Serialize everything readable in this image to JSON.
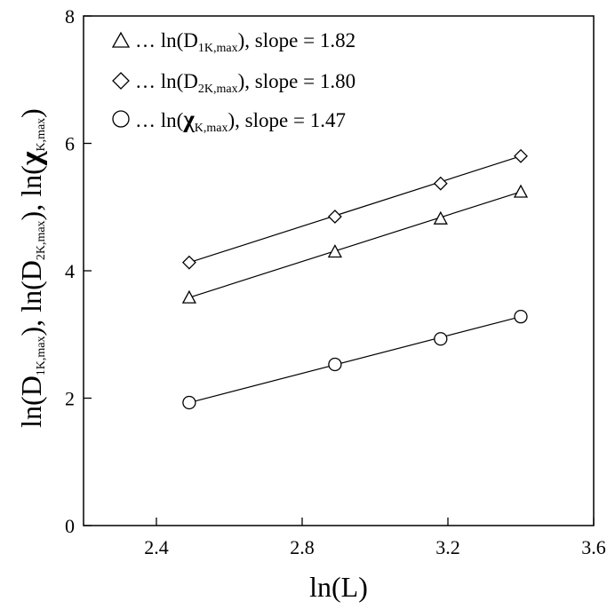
{
  "chart_data": {
    "type": "scatter",
    "x": [
      2.49,
      2.89,
      3.18,
      3.4
    ],
    "xlim": [
      2.2,
      3.6
    ],
    "ylim": [
      0,
      8
    ],
    "xticks": [
      "2.4",
      "2.8",
      "3.2",
      "3.6"
    ],
    "yticks": [
      "0",
      "2",
      "4",
      "6",
      "8"
    ],
    "xlabel": "ln(L)",
    "ylabel": {
      "ln1": "ln(D",
      "sub1": "1K,max",
      "close1": "), ",
      "ln2": "ln(D",
      "sub2": "2K,max",
      "close2": "), ",
      "ln3": "ln(",
      "chi": "χ",
      "sub3": "K,max",
      "close3": ")"
    },
    "grid": false,
    "legend_position": "top-left",
    "series": [
      {
        "key": "D1",
        "marker": "triangle",
        "values": [
          3.58,
          4.3,
          4.82,
          5.24
        ],
        "fit": {
          "slope": 1.82
        },
        "legend": {
          "prefix": "… ln(D",
          "sub": "1K,max",
          "suffix": "), slope = 1.82",
          "chi": ""
        }
      },
      {
        "key": "D2",
        "marker": "diamond",
        "values": [
          4.13,
          4.85,
          5.37,
          5.8
        ],
        "fit": {
          "slope": 1.8
        },
        "legend": {
          "prefix": "… ln(D",
          "sub": "2K,max",
          "suffix": "), slope = 1.80",
          "chi": ""
        }
      },
      {
        "key": "chi",
        "marker": "circle",
        "values": [
          1.93,
          2.53,
          2.93,
          3.28
        ],
        "fit": {
          "slope": 1.47
        },
        "legend": {
          "prefix": "… ln(",
          "sub": "K,max",
          "suffix": "), slope = 1.47",
          "chi": "χ"
        }
      }
    ]
  }
}
